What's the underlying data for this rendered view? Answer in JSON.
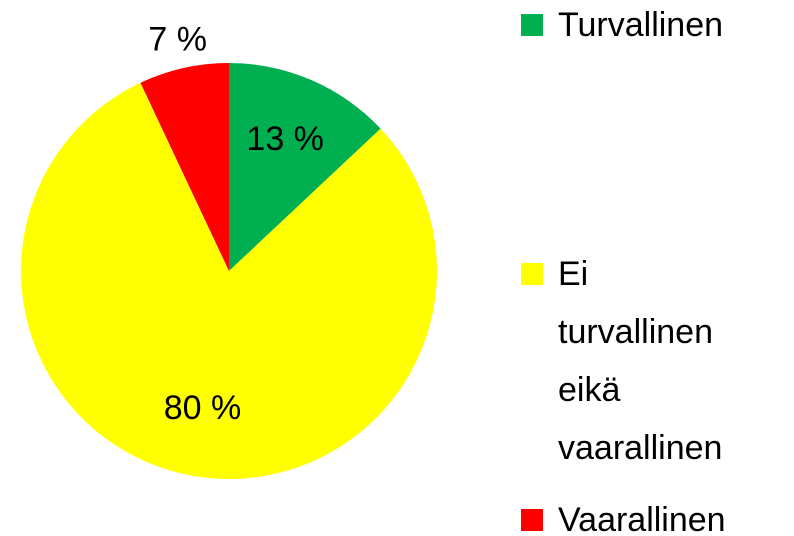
{
  "chart_data": {
    "type": "pie",
    "categories": [
      "Turvallinen",
      "Ei turvallinen eikä vaarallinen",
      "Vaarallinen"
    ],
    "values": [
      13,
      80,
      7
    ],
    "value_labels": [
      "13 %",
      "80 %",
      "7 %"
    ],
    "colors": [
      "#00b050",
      "#ffff00",
      "#ff0000"
    ],
    "legend": "right"
  }
}
